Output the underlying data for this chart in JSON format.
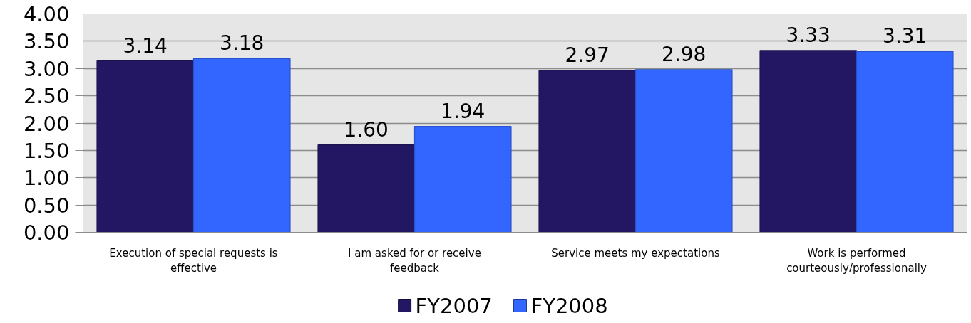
{
  "chart_data": {
    "type": "bar",
    "categories": [
      "Execution of special requests is effective",
      "I am asked for or receive feedback",
      "Service meets my expectations",
      "Work is performed courteously/professionally"
    ],
    "series": [
      {
        "name": "FY2007",
        "color": "#231763",
        "values": [
          3.14,
          1.6,
          2.97,
          3.33
        ],
        "value_labels": [
          "3.14",
          "1.60",
          "2.97",
          "3.33"
        ]
      },
      {
        "name": "FY2008",
        "color": "#3366ff",
        "values": [
          3.18,
          1.94,
          2.98,
          3.31
        ],
        "value_labels": [
          "3.18",
          "1.94",
          "2.98",
          "3.31"
        ]
      }
    ],
    "ylim": [
      0,
      4
    ],
    "yticks": [
      {
        "value": 0,
        "label": "0.00"
      },
      {
        "value": 0.5,
        "label": "0.50"
      },
      {
        "value": 1,
        "label": "1.00"
      },
      {
        "value": 1.5,
        "label": "1.50"
      },
      {
        "value": 2,
        "label": "2.00"
      },
      {
        "value": 2.5,
        "label": "2.50"
      },
      {
        "value": 3,
        "label": "3.00"
      },
      {
        "value": 3.5,
        "label": "3.50"
      },
      {
        "value": 4,
        "label": "4.00"
      }
    ],
    "grid": "y",
    "legend": "bottom"
  }
}
